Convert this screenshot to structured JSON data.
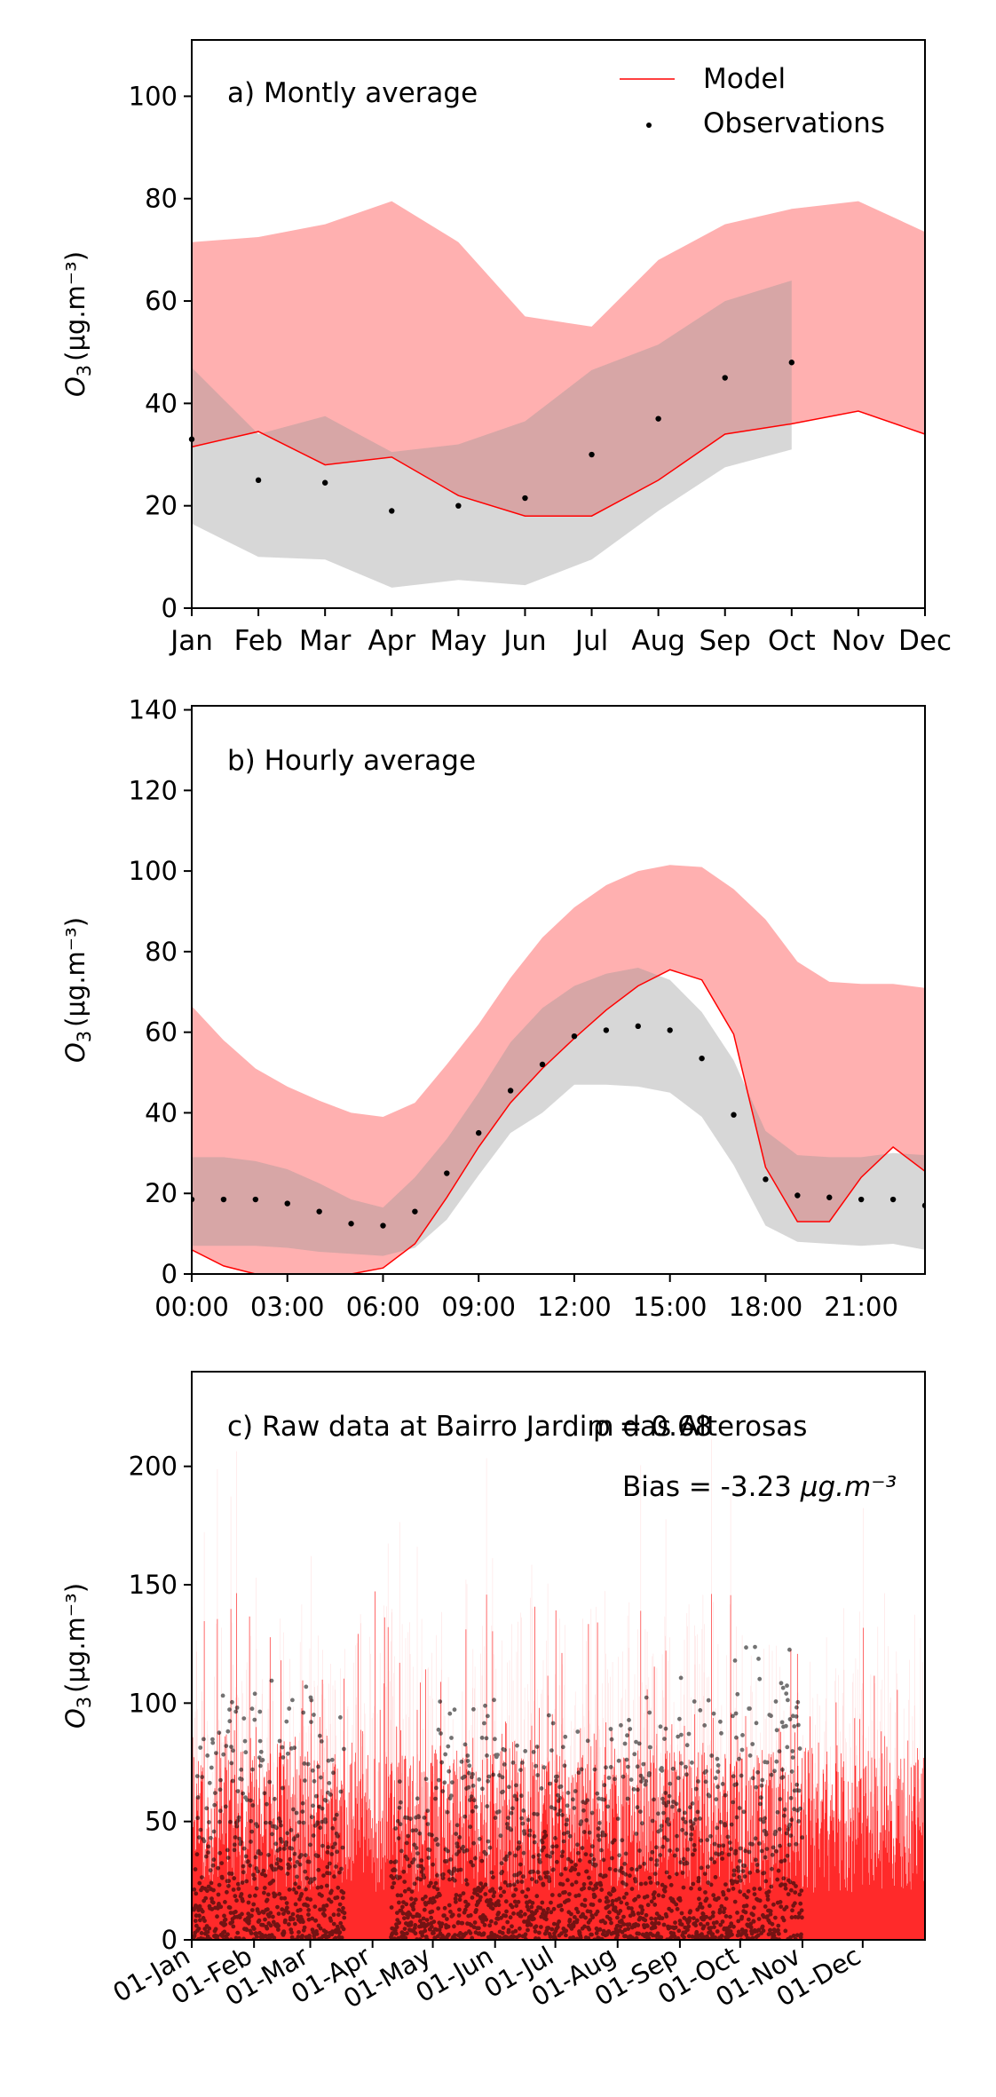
{
  "chart_data": [
    {
      "type": "line",
      "panel_label": "a) Montly average",
      "ylabel_base": "O",
      "ylabel_sub": "3",
      "ylabel_unit": "(μg.m⁻³)",
      "ylim": [
        0,
        111
      ],
      "yticks": [
        0,
        20,
        40,
        60,
        80,
        100
      ],
      "categories": [
        "Jan",
        "Feb",
        "Mar",
        "Apr",
        "May",
        "Jun",
        "Jul",
        "Aug",
        "Sep",
        "Oct",
        "Nov",
        "Dec"
      ],
      "legend": {
        "position": "top-right",
        "model_label": "Model",
        "obs_label": "Observations"
      },
      "model_band_upper": [
        71.5,
        72.5,
        75,
        79.5,
        71.5,
        57,
        55,
        68,
        75,
        78,
        79.5,
        73.5
      ],
      "model_band_lower": [
        31.5,
        34.5,
        28,
        29.5,
        22,
        18,
        18,
        25,
        34,
        36,
        38.5,
        34
      ],
      "model_line": [
        31.5,
        34.5,
        28,
        29.5,
        22,
        18,
        18,
        25,
        34,
        36,
        38.5,
        34
      ],
      "obs_band_upper": [
        47,
        34,
        37.5,
        30.5,
        32,
        36.5,
        46.5,
        51.5,
        60,
        64
      ],
      "obs_band_lower": [
        16.5,
        10,
        9.5,
        4,
        5.5,
        4.5,
        9.5,
        19,
        27.5,
        31
      ],
      "obs": [
        33,
        25,
        24.5,
        19,
        20,
        21.5,
        30,
        37,
        45,
        48
      ]
    },
    {
      "type": "line",
      "panel_label": "b) Hourly average",
      "ylabel_base": "O",
      "ylabel_sub": "3",
      "ylabel_unit": "(μg.m⁻³)",
      "ylim": [
        0,
        141
      ],
      "yticks": [
        0,
        20,
        40,
        60,
        80,
        100,
        120,
        140
      ],
      "x_hours": [
        0,
        1,
        2,
        3,
        4,
        5,
        6,
        7,
        8,
        9,
        10,
        11,
        12,
        13,
        14,
        15,
        16,
        17,
        18,
        19,
        20,
        21,
        22,
        23
      ],
      "xtick_labels": [
        "00:00",
        "03:00",
        "06:00",
        "09:00",
        "12:00",
        "15:00",
        "18:00",
        "21:00"
      ],
      "xtick_hours": [
        0,
        3,
        6,
        9,
        12,
        15,
        18,
        21
      ],
      "model_band_upper": [
        66.5,
        58,
        51,
        46.5,
        43,
        40,
        39,
        42.5,
        52,
        62,
        73.5,
        83.5,
        91,
        96.5,
        100,
        101.5,
        101,
        95.5,
        88,
        77.5,
        72.5,
        72,
        72,
        71
      ],
      "model_band_lower": [
        6,
        2,
        0,
        0,
        0,
        0,
        1.5,
        7.5,
        19,
        31.5,
        42.5,
        51,
        58.5,
        65.5,
        71.5,
        75.5,
        73,
        59.5,
        26.5,
        13,
        13,
        24,
        31.5,
        25.5
      ],
      "model_line": [
        6,
        2,
        0,
        0,
        0,
        0,
        1.5,
        7.5,
        19,
        31.5,
        42.5,
        51,
        58.5,
        65.5,
        71.5,
        75.5,
        73,
        59.5,
        26.5,
        13,
        13,
        24,
        31.5,
        25.5
      ],
      "obs_band_upper": [
        29,
        29,
        28,
        26,
        22.5,
        18.5,
        16.5,
        24,
        33.5,
        45,
        57.5,
        66,
        71.5,
        74.5,
        76,
        73,
        65,
        53,
        35.5,
        29.5,
        29,
        29,
        30,
        29.5
      ],
      "obs_band_lower": [
        7,
        7,
        7,
        6.5,
        5.5,
        5,
        4.5,
        6.5,
        13.5,
        24.5,
        35,
        40,
        47,
        47,
        46.5,
        45,
        39,
        27,
        12,
        8,
        7.5,
        7,
        7.5,
        6
      ],
      "obs": [
        18.5,
        18.5,
        18.5,
        17.5,
        15.5,
        12.5,
        12,
        15.5,
        25,
        35,
        45.5,
        52,
        59,
        60.5,
        61.5,
        60.5,
        53.5,
        39.5,
        23.5,
        19.5,
        19,
        18.5,
        18.5,
        17
      ]
    },
    {
      "type": "line",
      "panel_label": "c) Raw data at Bairro Jardim das Alterosas",
      "r_text": "ρ = 0.68",
      "bias_prefix": "Bias = -3.23 ",
      "bias_unit": "μg.m⁻³",
      "ylabel_base": "O",
      "ylabel_sub": "3",
      "ylabel_unit": "(μg.m⁻³)",
      "ylim": [
        0,
        240
      ],
      "yticks": [
        0,
        50,
        100,
        150,
        200
      ],
      "xtick_labels": [
        "01-Jan",
        "01-Feb",
        "01-Mar",
        "01-Apr",
        "01-May",
        "01-Jun",
        "01-Jul",
        "01-Aug",
        "01-Sep",
        "01-Oct",
        "01-Nov",
        "01-Dec"
      ],
      "xtick_days": [
        0,
        31,
        59,
        90,
        120,
        151,
        181,
        212,
        243,
        273,
        304,
        334
      ],
      "x_range_days": [
        0,
        365
      ],
      "obs_data_gaps_days": [
        [
          76,
          99
        ]
      ],
      "obs_last_day": 304,
      "model_typical_max": 105,
      "model_peak_max": 150,
      "obs_monthly_peak": [
        110,
        110,
        102,
        70,
        102,
        100,
        92,
        107,
        126,
        125,
        95
      ]
    }
  ]
}
